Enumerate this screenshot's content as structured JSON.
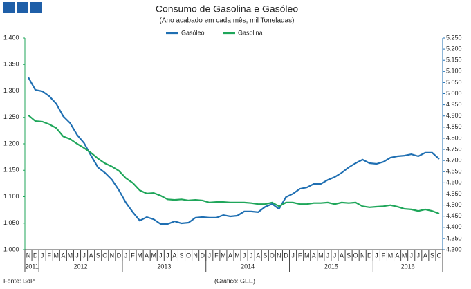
{
  "chart_data": {
    "type": "line",
    "title": "Consumo de Gasolina e Gasóleo",
    "subtitle": "(Ano acabado em cada mês, mil Toneladas)",
    "source": "Fonte: BdP",
    "credit": "(Gráfico: GEE)",
    "categories": [
      "N",
      "D",
      "J",
      "F",
      "M",
      "A",
      "M",
      "J",
      "J",
      "A",
      "S",
      "O",
      "N",
      "D",
      "J",
      "F",
      "M",
      "A",
      "M",
      "J",
      "J",
      "A",
      "S",
      "O",
      "N",
      "D",
      "J",
      "F",
      "M",
      "A",
      "M",
      "J",
      "J",
      "A",
      "S",
      "O",
      "N",
      "D",
      "J",
      "F",
      "M",
      "A",
      "M",
      "J",
      "J",
      "A",
      "S",
      "O",
      "N",
      "D",
      "J",
      "F",
      "M",
      "A",
      "M",
      "J",
      "J",
      "A",
      "S",
      "O"
    ],
    "years": [
      "2011",
      "2012",
      "2013",
      "2014",
      "2015",
      "2016"
    ],
    "series": [
      {
        "name": "Gasóleo",
        "color": "#1f6fb2",
        "axis": "y2",
        "values": [
          5073,
          5017,
          5011,
          4989,
          4955,
          4899,
          4868,
          4815,
          4778,
          4722,
          4669,
          4645,
          4614,
          4567,
          4511,
          4468,
          4430,
          4446,
          4436,
          4415,
          4415,
          4427,
          4418,
          4421,
          4443,
          4446,
          4443,
          4443,
          4455,
          4449,
          4452,
          4471,
          4471,
          4468,
          4492,
          4505,
          4483,
          4536,
          4551,
          4573,
          4579,
          4595,
          4595,
          4613,
          4626,
          4645,
          4669,
          4688,
          4704,
          4688,
          4685,
          4694,
          4713,
          4719,
          4722,
          4728,
          4719,
          4735,
          4735,
          4707
        ]
      },
      {
        "name": "Gasolina",
        "color": "#1fa65a",
        "values": [
          1254,
          1243,
          1242,
          1237,
          1230,
          1214,
          1209,
          1200,
          1192,
          1183,
          1172,
          1163,
          1157,
          1149,
          1135,
          1126,
          1112,
          1106,
          1107,
          1102,
          1095,
          1094,
          1095,
          1093,
          1094,
          1093,
          1089,
          1090,
          1090,
          1089,
          1089,
          1089,
          1088,
          1086,
          1086,
          1089,
          1082,
          1089,
          1089,
          1086,
          1086,
          1088,
          1088,
          1089,
          1086,
          1089,
          1088,
          1089,
          1082,
          1080,
          1081,
          1082,
          1084,
          1081,
          1077,
          1076,
          1073,
          1076,
          1073,
          1068
        ]
      }
    ],
    "ylim": [
      1000,
      1400
    ],
    "yticks": [
      {
        "value": 1000,
        "label": "1.000"
      },
      {
        "value": 1050,
        "label": "1.050"
      },
      {
        "value": 1100,
        "label": "1.100"
      },
      {
        "value": 1150,
        "label": "1.150"
      },
      {
        "value": 1200,
        "label": "1.200"
      },
      {
        "value": 1250,
        "label": "1.250"
      },
      {
        "value": 1300,
        "label": "1.300"
      },
      {
        "value": 1350,
        "label": "1.350"
      },
      {
        "value": 1400,
        "label": "1.400"
      }
    ],
    "y2lim": [
      4300,
      5250
    ],
    "y2ticks": [
      {
        "value": 4300,
        "label": "4.300"
      },
      {
        "value": 4350,
        "label": "4.350"
      },
      {
        "value": 4400,
        "label": "4.400"
      },
      {
        "value": 4450,
        "label": "4.450"
      },
      {
        "value": 4500,
        "label": "4.500"
      },
      {
        "value": 4550,
        "label": "4.550"
      },
      {
        "value": 4600,
        "label": "4.600"
      },
      {
        "value": 4650,
        "label": "4.650"
      },
      {
        "value": 4700,
        "label": "4.700"
      },
      {
        "value": 4750,
        "label": "4.750"
      },
      {
        "value": 4800,
        "label": "4.800"
      },
      {
        "value": 4850,
        "label": "4.850"
      },
      {
        "value": 4900,
        "label": "4.900"
      },
      {
        "value": 4950,
        "label": "4.950"
      },
      {
        "value": 5000,
        "label": "5.000"
      },
      {
        "value": 5050,
        "label": "5.050"
      },
      {
        "value": 5100,
        "label": "5.100"
      },
      {
        "value": 5150,
        "label": "5.150"
      },
      {
        "value": 5200,
        "label": "5.200"
      },
      {
        "value": 5250,
        "label": "5.250"
      }
    ],
    "legend": "top"
  }
}
